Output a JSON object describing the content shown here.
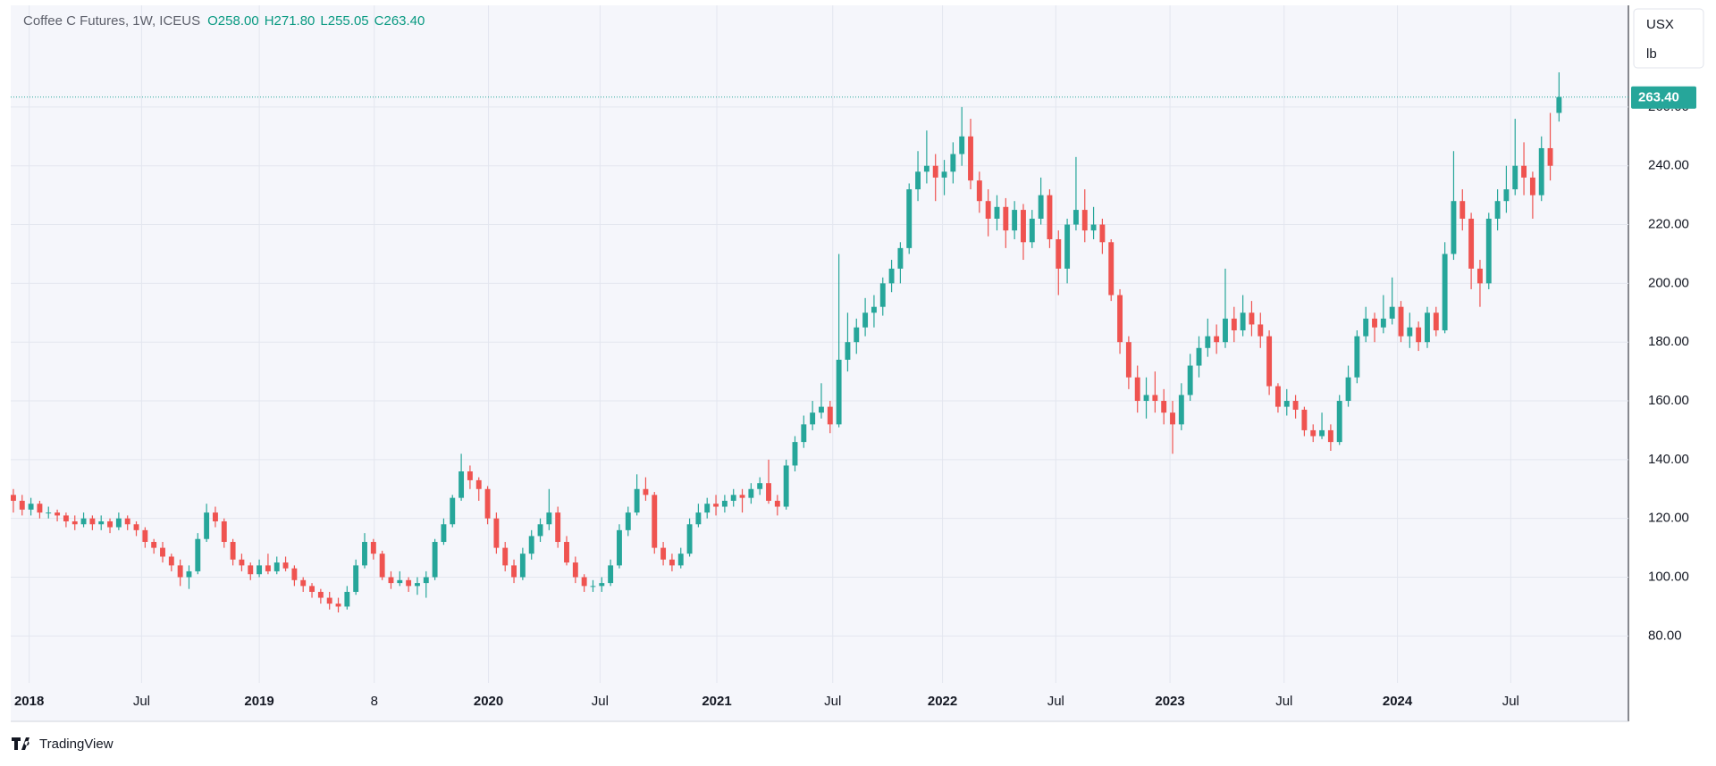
{
  "chart_data": {
    "type": "candlestick",
    "header": {
      "symbol": "Coffee C Futures, 1W, ICEUS",
      "open": "O258.00",
      "high": "H271.80",
      "low": "L255.05",
      "close": "C263.40"
    },
    "currency": "USX",
    "unit": "lb",
    "footer": "TradingView",
    "up_color": "#26a69a",
    "down_color": "#ef5350",
    "grid": true,
    "ylim": [
      64,
      294.6
    ],
    "yticks": [
      {
        "value": 80,
        "label": "80.00"
      },
      {
        "value": 100,
        "label": "100.00"
      },
      {
        "value": 120,
        "label": "120.00"
      },
      {
        "value": 140,
        "label": "140.00"
      },
      {
        "value": 160,
        "label": "160.00"
      },
      {
        "value": 180,
        "label": "180.00"
      },
      {
        "value": 200,
        "label": "200.00"
      },
      {
        "value": 220,
        "label": "220.00"
      },
      {
        "value": 240,
        "label": "240.00"
      },
      {
        "value": 260,
        "label": "260.00"
      }
    ],
    "last_price": {
      "value": 263.4,
      "label": "263.40"
    },
    "xlim": [
      -0.3,
      183.9
    ],
    "xticks": [
      {
        "value": 1.8,
        "label": "2018"
      },
      {
        "value": 14.6,
        "label": "Jul"
      },
      {
        "value": 28.0,
        "label": "2019"
      },
      {
        "value": 41.1,
        "label": "8"
      },
      {
        "value": 54.1,
        "label": "2020"
      },
      {
        "value": 66.8,
        "label": "Jul"
      },
      {
        "value": 80.1,
        "label": "2021"
      },
      {
        "value": 93.3,
        "label": "Jul"
      },
      {
        "value": 105.8,
        "label": "2022"
      },
      {
        "value": 118.7,
        "label": "Jul"
      },
      {
        "value": 131.7,
        "label": "2023"
      },
      {
        "value": 144.7,
        "label": "Jul"
      },
      {
        "value": 157.6,
        "label": "2024"
      },
      {
        "value": 170.5,
        "label": "Jul"
      }
    ],
    "ohlc": [
      [
        128,
        130,
        122,
        126
      ],
      [
        126,
        128,
        121,
        123
      ],
      [
        123,
        127,
        121,
        125
      ],
      [
        125,
        126,
        120,
        122
      ],
      [
        122,
        124,
        120,
        122
      ],
      [
        122,
        123,
        119,
        121
      ],
      [
        121,
        122,
        117,
        119
      ],
      [
        119,
        121,
        116,
        118
      ],
      [
        118,
        122,
        117,
        120
      ],
      [
        120,
        121,
        116,
        118
      ],
      [
        118,
        121,
        116,
        119
      ],
      [
        119,
        120,
        115,
        117
      ],
      [
        117,
        122,
        116,
        120
      ],
      [
        120,
        121,
        116,
        118
      ],
      [
        118,
        119,
        114,
        116
      ],
      [
        116,
        117,
        110,
        112
      ],
      [
        112,
        113,
        108,
        110
      ],
      [
        110,
        112,
        105,
        107
      ],
      [
        107,
        108,
        102,
        104
      ],
      [
        104,
        106,
        97,
        100
      ],
      [
        100,
        104,
        96,
        102
      ],
      [
        102,
        115,
        101,
        113
      ],
      [
        113,
        125,
        112,
        122
      ],
      [
        122,
        124,
        117,
        119
      ],
      [
        119,
        120,
        110,
        112
      ],
      [
        112,
        113,
        104,
        106
      ],
      [
        106,
        108,
        102,
        104
      ],
      [
        104,
        105,
        99,
        101
      ],
      [
        101,
        106,
        100,
        104
      ],
      [
        104,
        108,
        101,
        102
      ],
      [
        102,
        107,
        101,
        105
      ],
      [
        105,
        107,
        102,
        103
      ],
      [
        103,
        104,
        97,
        99
      ],
      [
        99,
        100,
        95,
        97
      ],
      [
        97,
        98,
        93,
        95
      ],
      [
        95,
        96,
        91,
        93
      ],
      [
        93,
        95,
        89,
        91
      ],
      [
        91,
        93,
        88,
        90
      ],
      [
        90,
        97,
        89,
        95
      ],
      [
        95,
        106,
        94,
        104
      ],
      [
        104,
        115,
        103,
        112
      ],
      [
        112,
        113,
        106,
        108
      ],
      [
        108,
        109,
        99,
        100
      ],
      [
        100,
        102,
        96,
        98
      ],
      [
        98,
        102,
        97,
        99
      ],
      [
        99,
        100,
        95,
        97
      ],
      [
        97,
        100,
        94,
        98
      ],
      [
        98,
        102,
        93,
        100
      ],
      [
        100,
        113,
        99,
        112
      ],
      [
        112,
        120,
        111,
        118
      ],
      [
        118,
        128,
        117,
        127
      ],
      [
        127,
        142,
        126,
        136
      ],
      [
        136,
        138,
        130,
        133
      ],
      [
        133,
        134,
        126,
        130
      ],
      [
        130,
        131,
        118,
        120
      ],
      [
        120,
        122,
        108,
        110
      ],
      [
        110,
        112,
        102,
        104
      ],
      [
        104,
        106,
        98,
        100
      ],
      [
        100,
        110,
        99,
        108
      ],
      [
        108,
        116,
        106,
        114
      ],
      [
        114,
        120,
        112,
        118
      ],
      [
        118,
        130,
        116,
        122
      ],
      [
        122,
        124,
        110,
        112
      ],
      [
        112,
        114,
        104,
        105
      ],
      [
        105,
        107,
        98,
        100
      ],
      [
        100,
        101,
        95,
        97
      ],
      [
        97,
        99,
        95,
        97
      ],
      [
        97,
        100,
        95,
        98
      ],
      [
        98,
        106,
        97,
        104
      ],
      [
        104,
        118,
        103,
        116
      ],
      [
        116,
        124,
        114,
        122
      ],
      [
        122,
        135,
        121,
        130
      ],
      [
        130,
        134,
        126,
        128
      ],
      [
        128,
        129,
        108,
        110
      ],
      [
        110,
        112,
        104,
        106
      ],
      [
        106,
        108,
        102,
        104
      ],
      [
        104,
        110,
        103,
        108
      ],
      [
        108,
        120,
        107,
        118
      ],
      [
        118,
        125,
        117,
        122
      ],
      [
        122,
        127,
        120,
        125
      ],
      [
        125,
        128,
        121,
        124
      ],
      [
        124,
        128,
        122,
        126
      ],
      [
        126,
        130,
        124,
        128
      ],
      [
        128,
        130,
        122,
        127
      ],
      [
        127,
        132,
        125,
        130
      ],
      [
        130,
        134,
        128,
        132
      ],
      [
        132,
        140,
        125,
        126
      ],
      [
        126,
        128,
        121,
        124
      ],
      [
        124,
        140,
        123,
        138
      ],
      [
        138,
        148,
        136,
        146
      ],
      [
        146,
        155,
        144,
        152
      ],
      [
        152,
        160,
        150,
        156
      ],
      [
        156,
        166,
        154,
        158
      ],
      [
        158,
        160,
        149,
        152
      ],
      [
        152,
        210,
        151,
        174
      ],
      [
        174,
        190,
        170,
        180
      ],
      [
        180,
        188,
        176,
        185
      ],
      [
        185,
        195,
        182,
        190
      ],
      [
        190,
        196,
        185,
        192
      ],
      [
        192,
        202,
        189,
        200
      ],
      [
        200,
        208,
        197,
        205
      ],
      [
        205,
        214,
        200,
        212
      ],
      [
        212,
        234,
        210,
        232
      ],
      [
        232,
        245,
        228,
        238
      ],
      [
        238,
        252,
        234,
        240
      ],
      [
        240,
        244,
        228,
        236
      ],
      [
        236,
        242,
        230,
        238
      ],
      [
        238,
        248,
        234,
        244
      ],
      [
        244,
        260,
        240,
        250
      ],
      [
        250,
        256,
        232,
        235
      ],
      [
        235,
        238,
        224,
        228
      ],
      [
        228,
        232,
        216,
        222
      ],
      [
        222,
        230,
        218,
        226
      ],
      [
        226,
        229,
        212,
        218
      ],
      [
        218,
        228,
        215,
        225
      ],
      [
        225,
        227,
        208,
        214
      ],
      [
        214,
        225,
        212,
        222
      ],
      [
        222,
        236,
        220,
        230
      ],
      [
        230,
        232,
        212,
        215
      ],
      [
        215,
        218,
        196,
        205
      ],
      [
        205,
        222,
        200,
        220
      ],
      [
        220,
        243,
        218,
        225
      ],
      [
        225,
        232,
        214,
        218
      ],
      [
        218,
        226,
        215,
        220
      ],
      [
        220,
        222,
        210,
        214
      ],
      [
        214,
        215,
        194,
        196
      ],
      [
        196,
        198,
        176,
        180
      ],
      [
        180,
        182,
        164,
        168
      ],
      [
        168,
        172,
        156,
        160
      ],
      [
        160,
        168,
        154,
        162
      ],
      [
        162,
        170,
        156,
        160
      ],
      [
        160,
        164,
        152,
        156
      ],
      [
        156,
        160,
        142,
        152
      ],
      [
        152,
        166,
        150,
        162
      ],
      [
        162,
        176,
        160,
        172
      ],
      [
        172,
        182,
        168,
        178
      ],
      [
        178,
        188,
        175,
        182
      ],
      [
        182,
        186,
        176,
        180
      ],
      [
        180,
        205,
        178,
        188
      ],
      [
        188,
        192,
        180,
        184
      ],
      [
        184,
        196,
        182,
        190
      ],
      [
        190,
        194,
        182,
        186
      ],
      [
        186,
        190,
        178,
        182
      ],
      [
        182,
        184,
        162,
        165
      ],
      [
        165,
        166,
        156,
        158
      ],
      [
        158,
        164,
        155,
        160
      ],
      [
        160,
        162,
        154,
        157
      ],
      [
        157,
        158,
        148,
        150
      ],
      [
        150,
        152,
        146,
        148
      ],
      [
        148,
        156,
        147,
        150
      ],
      [
        150,
        152,
        143,
        146
      ],
      [
        146,
        162,
        145,
        160
      ],
      [
        160,
        172,
        158,
        168
      ],
      [
        168,
        184,
        166,
        182
      ],
      [
        182,
        192,
        180,
        188
      ],
      [
        188,
        190,
        180,
        185
      ],
      [
        185,
        196,
        183,
        188
      ],
      [
        188,
        202,
        186,
        192
      ],
      [
        192,
        194,
        180,
        182
      ],
      [
        182,
        190,
        178,
        185
      ],
      [
        185,
        187,
        177,
        180
      ],
      [
        180,
        192,
        178,
        190
      ],
      [
        190,
        192,
        182,
        184
      ],
      [
        184,
        214,
        183,
        210
      ],
      [
        210,
        245,
        208,
        228
      ],
      [
        228,
        232,
        218,
        222
      ],
      [
        222,
        224,
        198,
        205
      ],
      [
        205,
        208,
        192,
        200
      ],
      [
        200,
        224,
        198,
        222
      ],
      [
        222,
        232,
        218,
        228
      ],
      [
        228,
        240,
        224,
        232
      ],
      [
        232,
        256,
        230,
        240
      ],
      [
        240,
        248,
        230,
        236
      ],
      [
        236,
        238,
        222,
        230
      ],
      [
        230,
        250,
        228,
        246
      ],
      [
        246,
        258,
        235,
        240
      ],
      [
        258,
        271.8,
        255.05,
        263.4
      ]
    ]
  }
}
